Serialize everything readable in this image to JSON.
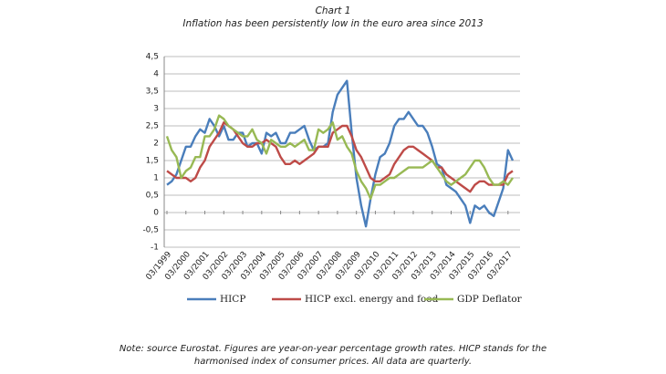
{
  "chart_data": {
    "type": "line",
    "title": "Chart 1",
    "subtitle": "Inflation has been persistently low in the euro area since 2013",
    "categories": [
      "03/1999",
      null,
      null,
      null,
      "03/2000",
      null,
      null,
      null,
      "03/2001",
      null,
      null,
      null,
      "03/2002",
      null,
      null,
      null,
      "03/2003",
      null,
      null,
      null,
      "03/2004",
      null,
      null,
      null,
      "03/2005",
      null,
      null,
      null,
      "03/2006",
      null,
      null,
      null,
      "03/2007",
      null,
      null,
      null,
      "03/2008",
      null,
      null,
      null,
      "03/2009",
      null,
      null,
      null,
      "03/2010",
      null,
      null,
      null,
      "03/2011",
      null,
      null,
      null,
      "03/2012",
      null,
      null,
      null,
      "03/2013",
      null,
      null,
      null,
      "03/2014",
      null,
      null,
      null,
      "03/2015",
      null,
      null,
      null,
      "03/2016",
      null,
      null,
      null,
      "03/2017",
      null
    ],
    "series": [
      {
        "name": "HICP",
        "color": "#4a7ebb",
        "values": [
          0.8,
          0.9,
          1.1,
          1.5,
          1.9,
          1.9,
          2.2,
          2.4,
          2.3,
          2.7,
          2.5,
          2.2,
          2.5,
          2.1,
          2.1,
          2.3,
          2.3,
          1.9,
          2.0,
          2.0,
          1.7,
          2.3,
          2.2,
          2.3,
          2.0,
          2.0,
          2.3,
          2.3,
          2.4,
          2.5,
          2.1,
          1.8,
          1.9,
          1.9,
          2.0,
          2.9,
          3.4,
          3.6,
          3.8,
          2.3,
          1.0,
          0.2,
          -0.4,
          0.4,
          1.1,
          1.6,
          1.7,
          2.0,
          2.5,
          2.7,
          2.7,
          2.9,
          2.7,
          2.5,
          2.5,
          2.3,
          1.9,
          1.4,
          1.3,
          0.8,
          0.7,
          0.6,
          0.4,
          0.2,
          -0.3,
          0.2,
          0.1,
          0.2,
          0.0,
          -0.1,
          0.3,
          0.7,
          1.8,
          1.5
        ]
      },
      {
        "name": "HICP excl. energy and food",
        "color": "#be4b48",
        "values": [
          1.2,
          1.1,
          1.0,
          1.0,
          1.0,
          0.9,
          1.0,
          1.3,
          1.5,
          1.9,
          2.1,
          2.3,
          2.6,
          2.5,
          2.4,
          2.2,
          2.0,
          1.9,
          1.9,
          2.0,
          2.0,
          2.1,
          2.0,
          1.9,
          1.6,
          1.4,
          1.4,
          1.5,
          1.4,
          1.5,
          1.6,
          1.7,
          1.9,
          1.9,
          1.9,
          2.3,
          2.4,
          2.5,
          2.5,
          2.2,
          1.8,
          1.6,
          1.3,
          1.0,
          0.9,
          0.9,
          1.0,
          1.1,
          1.4,
          1.6,
          1.8,
          1.9,
          1.9,
          1.8,
          1.7,
          1.6,
          1.5,
          1.3,
          1.3,
          1.1,
          1.0,
          0.9,
          0.8,
          0.7,
          0.6,
          0.8,
          0.9,
          0.9,
          0.8,
          0.8,
          0.8,
          0.8,
          1.1,
          1.2
        ]
      },
      {
        "name": "GDP Deflator",
        "color": "#98b954",
        "values": [
          2.2,
          1.8,
          1.6,
          1.0,
          1.2,
          1.3,
          1.6,
          1.6,
          2.2,
          2.2,
          2.4,
          2.8,
          2.7,
          2.5,
          2.4,
          2.3,
          2.2,
          2.2,
          2.4,
          2.1,
          2.0,
          1.7,
          2.1,
          2.0,
          1.9,
          1.9,
          2.0,
          1.9,
          2.0,
          2.1,
          1.8,
          1.8,
          2.4,
          2.3,
          2.4,
          2.6,
          2.1,
          2.2,
          1.9,
          1.7,
          1.2,
          0.9,
          0.7,
          0.4,
          0.8,
          0.8,
          0.9,
          1.0,
          1.0,
          1.1,
          1.2,
          1.3,
          1.3,
          1.3,
          1.3,
          1.4,
          1.5,
          1.3,
          1.1,
          0.9,
          0.8,
          0.9,
          1.0,
          1.1,
          1.3,
          1.5,
          1.5,
          1.3,
          1.0,
          0.8,
          0.8,
          0.9,
          0.8,
          1.0
        ]
      }
    ],
    "ylim": [
      -1,
      4.5
    ],
    "yticks": [
      {
        "value": -1,
        "label": "-1"
      },
      {
        "value": -0.5,
        "label": "-0,5"
      },
      0,
      {
        "value": 0.5,
        "label": "0,5"
      },
      1,
      {
        "value": 1.5,
        "label": "1,5"
      },
      2,
      {
        "value": 2.5,
        "label": "2,5"
      },
      3,
      {
        "value": 3.5,
        "label": "3,5"
      },
      4,
      {
        "value": 4.5,
        "label": "4,5"
      }
    ],
    "grid": true,
    "legend": "bottom",
    "note": [
      "Note: source Eurostat. Figures are year-on-year percentage growth rates. HICP stands for the",
      "harmonised index of consumer prices. All data are quarterly."
    ]
  }
}
